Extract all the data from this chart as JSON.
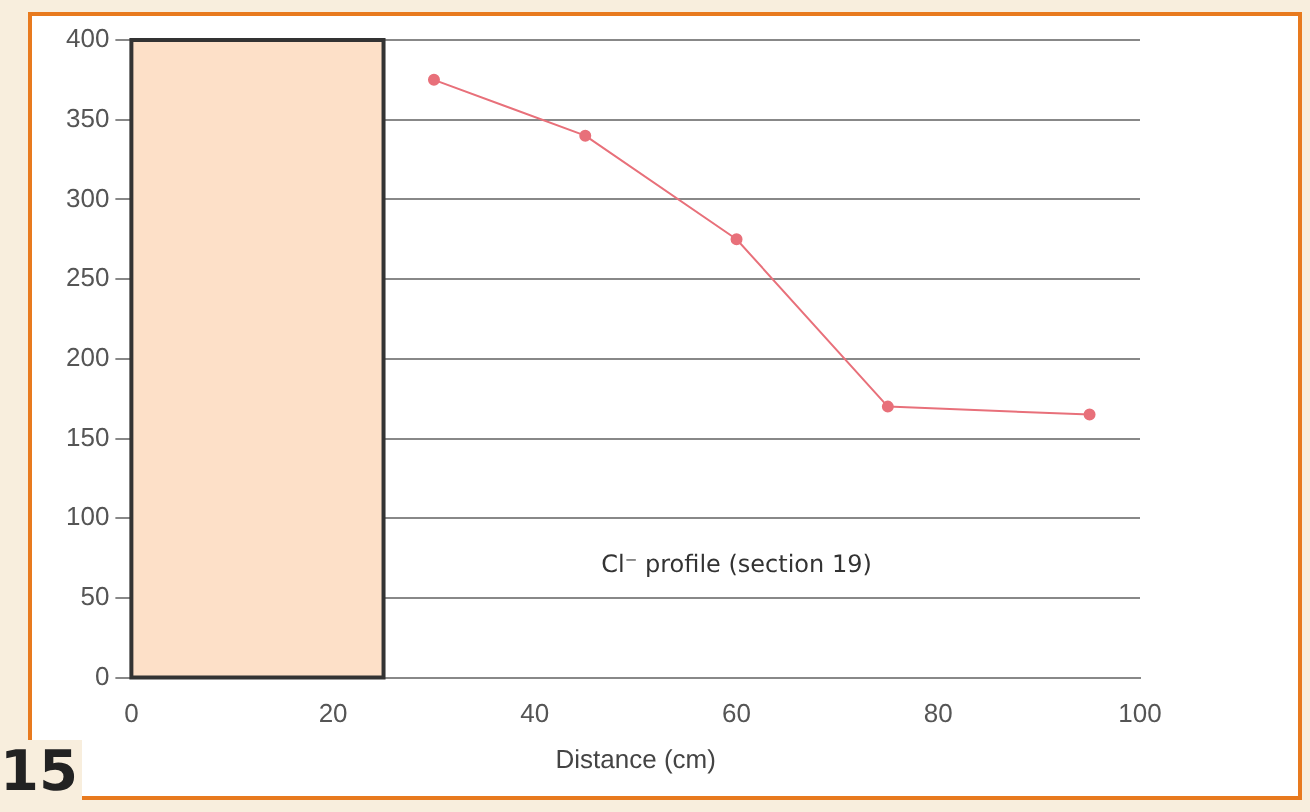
{
  "chart_data": {
    "type": "line",
    "xlabel": "Distance (cm)",
    "x": [
      30,
      45,
      60,
      75,
      95
    ],
    "series": [
      {
        "color": "#e8707a",
        "values": [
          375,
          340,
          275,
          170,
          165
        ]
      }
    ],
    "xlim": [
      0,
      100
    ],
    "xticks": [
      0,
      20,
      40,
      60,
      80,
      100
    ],
    "ylim": [
      0,
      400
    ],
    "yticks": [
      0,
      50,
      100,
      150,
      200,
      250,
      300,
      350,
      400
    ],
    "grid": "y",
    "legend": false,
    "marker": "circle",
    "line_style": "solid",
    "bands": [
      {
        "axis": "x",
        "from": 0,
        "to": 25,
        "color": "#fde0c8"
      }
    ],
    "annotations": [
      "Cl⁻ profile (section 19)",
      "15"
    ]
  }
}
